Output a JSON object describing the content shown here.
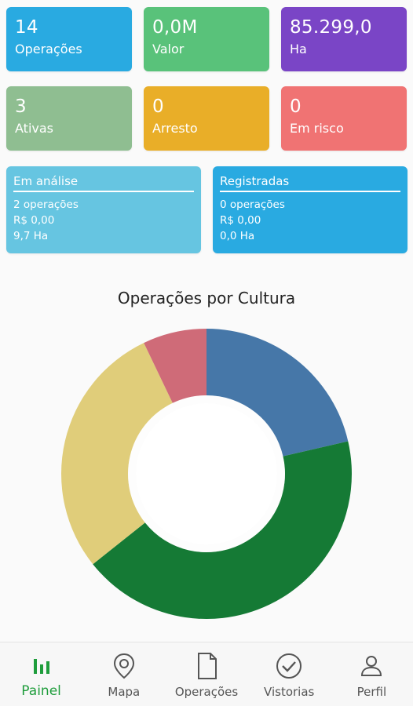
{
  "stats": [
    {
      "value": "14",
      "label": "Operações",
      "color": "#29aae1"
    },
    {
      "value": "0,0M",
      "label": "Valor",
      "color": "#59c27a"
    },
    {
      "value": "85.299,0",
      "label": "Ha",
      "color": "#7a45c6"
    },
    {
      "value": "3",
      "label": "Ativas",
      "color": "#8fbe91"
    },
    {
      "value": "0",
      "label": "Arresto",
      "color": "#e9ae28"
    },
    {
      "value": "0",
      "label": "Em risco",
      "color": "#f07373"
    }
  ],
  "status_cards": [
    {
      "title": "Em análise",
      "lines": [
        "2 operações",
        "R$ 0,00",
        "9,7 Ha"
      ],
      "color": "#66c5e1"
    },
    {
      "title": "Registradas",
      "lines": [
        "0 operações",
        "R$ 0,00",
        "0,0 Ha"
      ],
      "color": "#29aae1"
    }
  ],
  "chart_title": "Operações por Cultura",
  "chart_data": {
    "type": "pie",
    "values": [
      21.4,
      42.9,
      28.6,
      7.1
    ],
    "colors": [
      "#4677a8",
      "#157a35",
      "#e0cd7a",
      "#cf6b78"
    ]
  },
  "nav": {
    "items": [
      {
        "label": "Painel",
        "icon": "bar-chart-icon"
      },
      {
        "label": "Mapa",
        "icon": "map-pin-icon"
      },
      {
        "label": "Operações",
        "icon": "document-icon"
      },
      {
        "label": "Vistorias",
        "icon": "check-circle-icon"
      },
      {
        "label": "Perfil",
        "icon": "person-icon"
      }
    ],
    "active": "Painel",
    "active_color": "#1f9d3c"
  }
}
